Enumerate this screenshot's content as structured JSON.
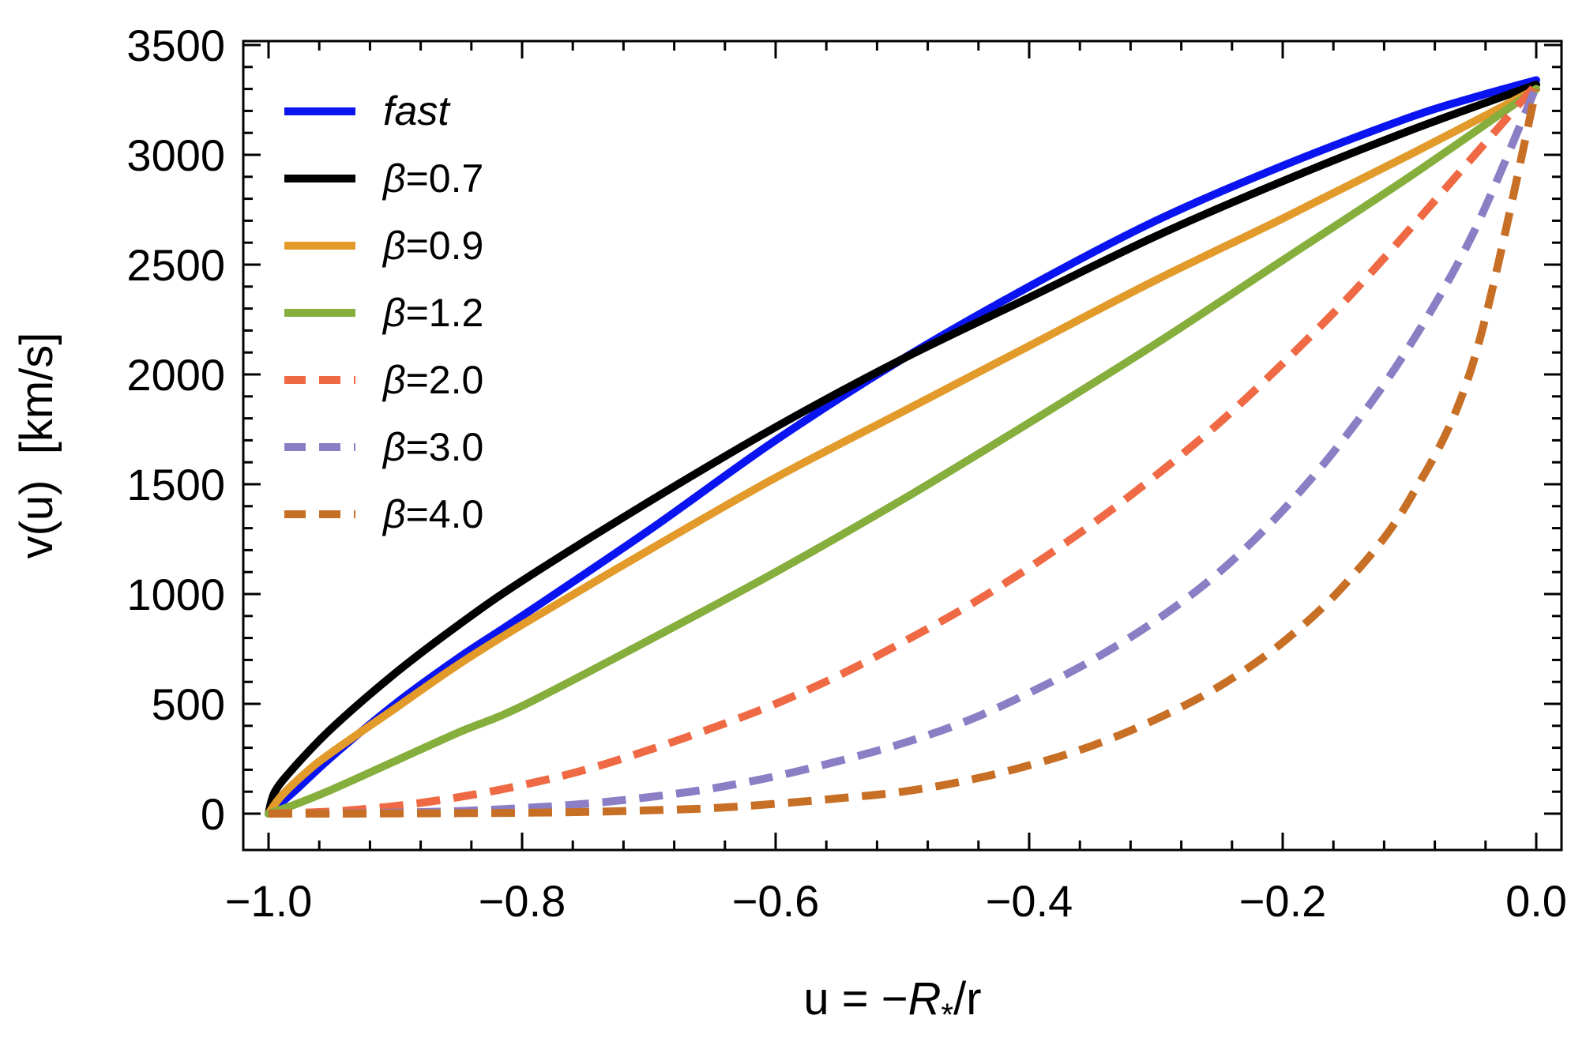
{
  "chart_data": {
    "type": "line",
    "title": "",
    "xlabel": "u = −R⁎/r",
    "xlabel_parts": {
      "prefix": "u = −",
      "italic": "R",
      "subscript": "*",
      "suffix": "/r"
    },
    "ylabel": "v(u)  [km/s]",
    "xlim": [
      -1.0,
      0.0
    ],
    "ylim": [
      0,
      3500
    ],
    "xticks": [
      -1.0,
      -0.8,
      -0.6,
      -0.4,
      -0.2,
      0.0
    ],
    "xtick_labels": [
      "−1.0",
      "−0.8",
      "−0.6",
      "−0.4",
      "−0.2",
      "0.0"
    ],
    "yticks": [
      0,
      500,
      1000,
      1500,
      2000,
      2500,
      3000,
      3500
    ],
    "ytick_labels": [
      "0",
      "500",
      "1000",
      "1500",
      "2000",
      "2500",
      "3000",
      "3500"
    ],
    "grid": false,
    "legend_position": "top-left",
    "series": [
      {
        "name": "fast",
        "color": "#0a14f0",
        "dashed": false,
        "x": [
          -1.0,
          -0.98,
          -0.95,
          -0.9,
          -0.85,
          -0.8,
          -0.7,
          -0.6,
          -0.5,
          -0.4,
          -0.3,
          -0.2,
          -0.1,
          -0.05,
          0.0
        ],
        "y": [
          0,
          100,
          260,
          500,
          710,
          900,
          1290,
          1700,
          2070,
          2400,
          2700,
          2950,
          3170,
          3260,
          3340
        ]
      },
      {
        "name": "β=0.7",
        "color": "#000000",
        "dashed": false,
        "x": [
          -1.0,
          -0.995,
          -0.98,
          -0.95,
          -0.9,
          -0.85,
          -0.8,
          -0.7,
          -0.6,
          -0.5,
          -0.4,
          -0.3,
          -0.2,
          -0.1,
          0.0
        ],
        "y": [
          0,
          100,
          210,
          390,
          640,
          860,
          1060,
          1420,
          1760,
          2070,
          2350,
          2630,
          2880,
          3110,
          3320
        ]
      },
      {
        "name": "β=0.9",
        "color": "#e29a2a",
        "dashed": false,
        "x": [
          -1.0,
          -0.99,
          -0.97,
          -0.95,
          -0.9,
          -0.85,
          -0.8,
          -0.7,
          -0.6,
          -0.5,
          -0.4,
          -0.3,
          -0.2,
          -0.1,
          0.0
        ],
        "y": [
          0,
          80,
          190,
          280,
          480,
          680,
          860,
          1200,
          1530,
          1830,
          2130,
          2430,
          2710,
          3000,
          3300
        ]
      },
      {
        "name": "β=1.2",
        "color": "#86ae3c",
        "dashed": false,
        "x": [
          -1.0,
          -0.98,
          -0.95,
          -0.9,
          -0.85,
          -0.8,
          -0.7,
          -0.6,
          -0.5,
          -0.4,
          -0.3,
          -0.2,
          -0.1,
          0.0
        ],
        "y": [
          0,
          40,
          110,
          240,
          370,
          490,
          790,
          1100,
          1430,
          1780,
          2140,
          2520,
          2900,
          3300
        ]
      },
      {
        "name": "β=2.0",
        "color": "#ef6a44",
        "dashed": true,
        "x": [
          -1.0,
          -0.95,
          -0.9,
          -0.85,
          -0.8,
          -0.75,
          -0.7,
          -0.65,
          -0.6,
          -0.55,
          -0.5,
          -0.45,
          -0.4,
          -0.35,
          -0.3,
          -0.25,
          -0.2,
          -0.15,
          -0.1,
          -0.05,
          0.0
        ],
        "y": [
          0,
          10,
          35,
          75,
          130,
          200,
          290,
          390,
          500,
          630,
          780,
          940,
          1120,
          1320,
          1540,
          1780,
          2050,
          2340,
          2660,
          2990,
          3320
        ]
      },
      {
        "name": "β=3.0",
        "color": "#8b7ec4",
        "dashed": true,
        "x": [
          -1.0,
          -0.95,
          -0.9,
          -0.85,
          -0.8,
          -0.75,
          -0.7,
          -0.65,
          -0.6,
          -0.55,
          -0.5,
          -0.45,
          -0.4,
          -0.35,
          -0.3,
          -0.25,
          -0.2,
          -0.15,
          -0.1,
          -0.05,
          0.0
        ],
        "y": [
          0,
          1,
          5,
          12,
          25,
          45,
          75,
          115,
          170,
          240,
          320,
          420,
          550,
          700,
          880,
          1100,
          1380,
          1720,
          2130,
          2640,
          3310
        ]
      },
      {
        "name": "β=4.0",
        "color": "#c86f26",
        "dashed": true,
        "x": [
          -1.0,
          -0.95,
          -0.9,
          -0.85,
          -0.8,
          -0.75,
          -0.7,
          -0.65,
          -0.6,
          -0.55,
          -0.5,
          -0.45,
          -0.4,
          -0.35,
          -0.3,
          -0.25,
          -0.2,
          -0.15,
          -0.1,
          -0.05,
          0.0
        ],
        "y": [
          0,
          0,
          1,
          2,
          4,
          8,
          15,
          25,
          45,
          70,
          100,
          150,
          220,
          310,
          430,
          580,
          780,
          1050,
          1430,
          2050,
          3300
        ]
      }
    ]
  }
}
